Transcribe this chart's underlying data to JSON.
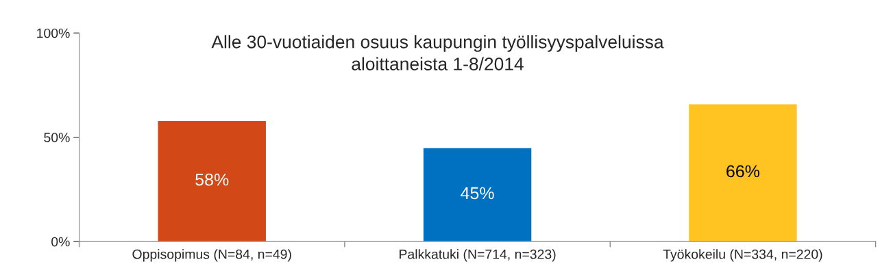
{
  "chart_data": {
    "type": "bar",
    "title": "Alle 30-vuotiaiden osuus kaupungin työllisyyspalveluissa\naloittaneista 1-8/2014",
    "categories": [
      "Oppisopimus (N=84, n=49)",
      "Palkkatuki (N=714, n=323)",
      "Työkokeilu (N=334, n=220)"
    ],
    "values": [
      58,
      45,
      66
    ],
    "colors": [
      "#d24816",
      "#0070c0",
      "#ffc322"
    ],
    "value_labels": [
      "58%",
      "45%",
      "66%"
    ],
    "ylim": [
      0,
      100
    ],
    "yticks": [
      {
        "value": 0,
        "label": "0%"
      },
      {
        "value": 50,
        "label": "50%"
      },
      {
        "value": 100,
        "label": "100%"
      }
    ],
    "grid": false,
    "legend": false
  }
}
